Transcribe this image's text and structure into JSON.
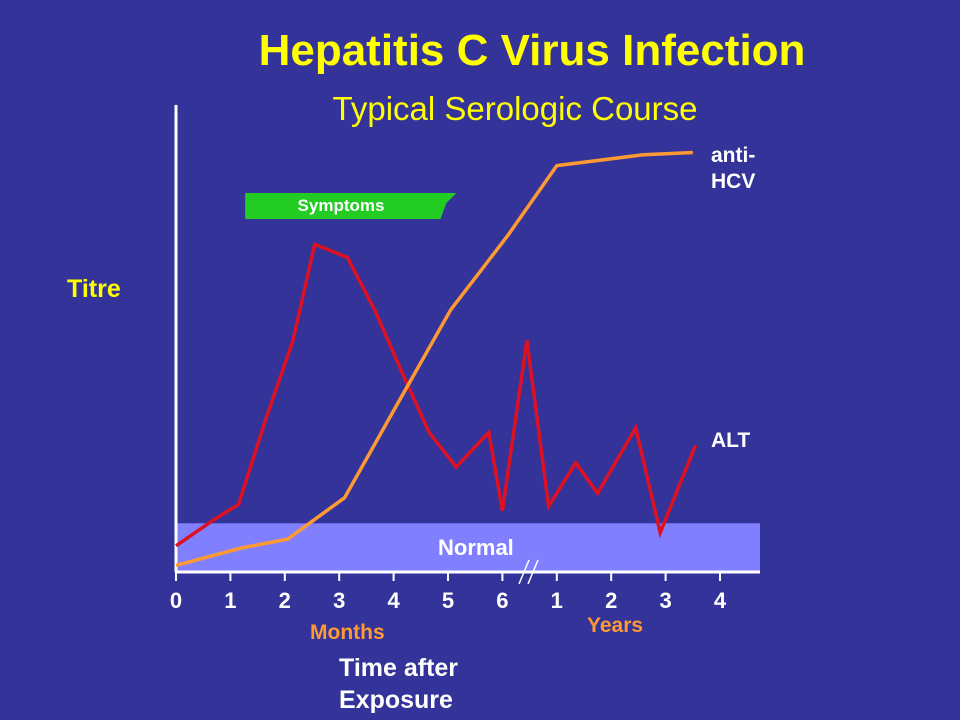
{
  "slide": {
    "title": "Hepatitis C Virus Infection",
    "subtitle": "Typical Serologic Course"
  },
  "colors": {
    "background": "#333399",
    "title": "#FFFF00",
    "alt_line": "#DD1122",
    "anti_hcv_line": "#FF9933",
    "normal_band": "#8080FF",
    "symptoms_bar": "#22CC22",
    "axis": "#FFFFFF",
    "unit_labels": "#FF9933"
  },
  "chart_data": {
    "type": "line",
    "title": "Hepatitis C Virus Infection",
    "subtitle": "Typical Serologic Course",
    "ylabel": "Titre",
    "xlabel": "Time after Exposure",
    "x_tick_labels": [
      "0",
      "1",
      "2",
      "3",
      "4",
      "5",
      "6",
      "1",
      "2",
      "3",
      "4"
    ],
    "x_unit_labels": {
      "months": "Months",
      "years": "Years"
    },
    "axis_break": "//",
    "ylim": [
      0,
      100
    ],
    "grid": false,
    "normal_band": {
      "label": "Normal",
      "y_range": [
        0,
        10
      ]
    },
    "symptoms_bar": {
      "label": "Symptoms",
      "x_range": [
        1.4,
        5.1
      ]
    },
    "series": [
      {
        "name": "anti-HCV",
        "label_lines": [
          "anti-",
          "HCV"
        ],
        "x": [
          0,
          1.2,
          2.05,
          3.1,
          4.05,
          5.05,
          6.1,
          7.0,
          8.6,
          9.5
        ],
        "y": [
          1.5,
          5.5,
          7.5,
          17,
          38,
          60,
          77,
          93,
          95.5,
          96
        ]
      },
      {
        "name": "ALT",
        "x": [
          0,
          0.7,
          1.15,
          1.65,
          2.15,
          2.55,
          3.15,
          3.65,
          4.25,
          4.65,
          5.15,
          5.75,
          6.0,
          6.45,
          6.85,
          7.35,
          7.75,
          8.45,
          8.9,
          9.55
        ],
        "y": [
          6,
          12,
          15.5,
          35,
          53,
          75,
          72,
          60,
          43,
          32,
          24,
          32,
          14,
          53,
          15,
          25,
          18,
          33,
          9,
          29
        ]
      }
    ]
  }
}
